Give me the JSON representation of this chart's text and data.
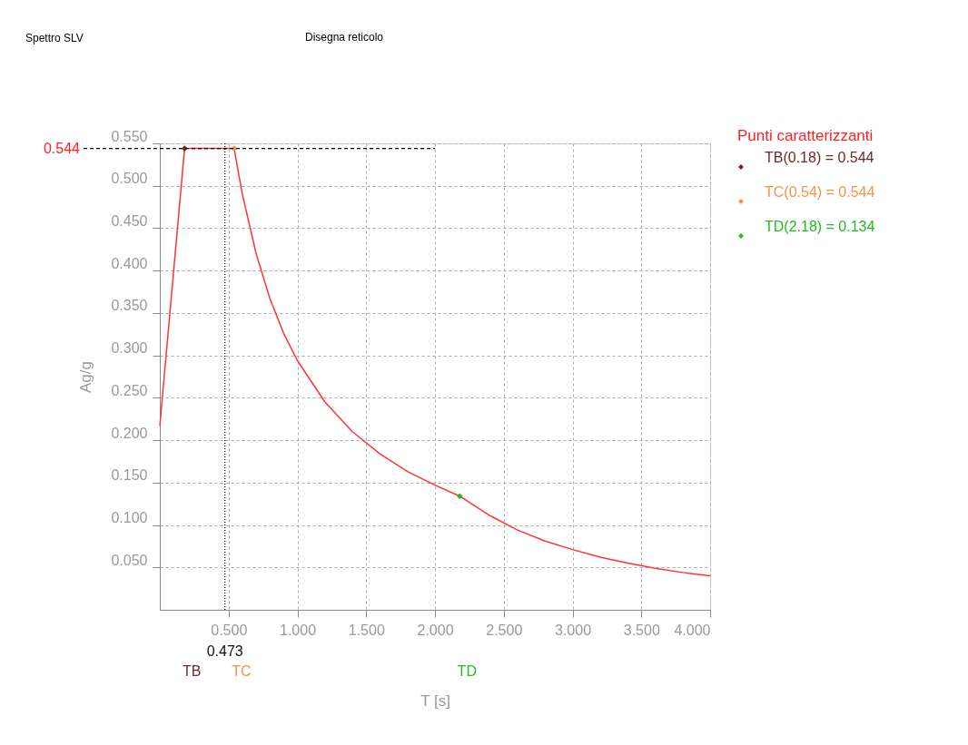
{
  "chart_data": {
    "type": "line",
    "title": "Spettro SLV",
    "xlabel": "T [s]",
    "ylabel": "Ag/g",
    "legend_title": "Punti caratterizzanti",
    "legend": "right",
    "grid": true,
    "marker": "diamond",
    "xlim": [
      0,
      4
    ],
    "ylim": [
      0,
      0.55
    ],
    "xticks": [
      {
        "value": 0.5,
        "label": "0.500"
      },
      {
        "value": 1,
        "label": "1.000"
      },
      {
        "value": 1.5,
        "label": "1.500"
      },
      {
        "value": 2,
        "label": "2.000"
      },
      {
        "value": 2.5,
        "label": "2.500"
      },
      {
        "value": 3,
        "label": "3.000"
      },
      {
        "value": 3.5,
        "label": "3.500"
      },
      {
        "value": 4,
        "label": "4.000"
      }
    ],
    "yticks": [
      {
        "value": 0.05,
        "label": "0.050"
      },
      {
        "value": 0.1,
        "label": "0.100"
      },
      {
        "value": 0.15,
        "label": "0.150"
      },
      {
        "value": 0.2,
        "label": "0.200"
      },
      {
        "value": 0.25,
        "label": "0.250"
      },
      {
        "value": 0.3,
        "label": "0.300"
      },
      {
        "value": 0.35,
        "label": "0.350"
      },
      {
        "value": 0.4,
        "label": "0.400"
      },
      {
        "value": 0.45,
        "label": "0.450"
      },
      {
        "value": 0.5,
        "label": "0.500"
      },
      {
        "value": 0.55,
        "label": "0.550"
      }
    ],
    "series": [
      {
        "marker": "none",
        "color": "#ff3333",
        "x": [
          0,
          0.18,
          0.54,
          0.6,
          0.7,
          0.8,
          0.9,
          1.0,
          1.2,
          1.4,
          1.6,
          1.8,
          2.0,
          2.18,
          2.4,
          2.6,
          2.8,
          3.0,
          3.2,
          3.4,
          3.6,
          3.8,
          4.0
        ],
        "values": [
          0.217,
          0.544,
          0.544,
          0.49,
          0.42,
          0.367,
          0.326,
          0.294,
          0.245,
          0.21,
          0.184,
          0.163,
          0.147,
          0.134,
          0.111,
          0.094,
          0.081,
          0.071,
          0.062,
          0.055,
          0.049,
          0.044,
          0.04
        ]
      },
      {
        "type": "scatter",
        "name": "TB(0.18) = 0.544",
        "color": "#6b2a2a",
        "x": [
          0.18
        ],
        "values": [
          0.544
        ]
      },
      {
        "type": "scatter",
        "name": "TC(0.54) = 0.544",
        "color": "#f0954a",
        "x": [
          0.54
        ],
        "values": [
          0.544
        ]
      },
      {
        "type": "scatter",
        "name": "TD(2.18) = 0.134",
        "color": "#22bb22",
        "x": [
          2.18
        ],
        "values": [
          0.134
        ]
      }
    ],
    "ref_lines": [
      {
        "axis": "x",
        "value": 0.473,
        "label": "0.473",
        "color": "#000000",
        "line_style": "dotted"
      },
      {
        "axis": "y",
        "value": 0.544,
        "label": "0.544",
        "color": "#000000",
        "line_style": "dashed"
      }
    ],
    "annotations": [
      "TB",
      "TC",
      "TD",
      "Disegna reticolo"
    ]
  }
}
